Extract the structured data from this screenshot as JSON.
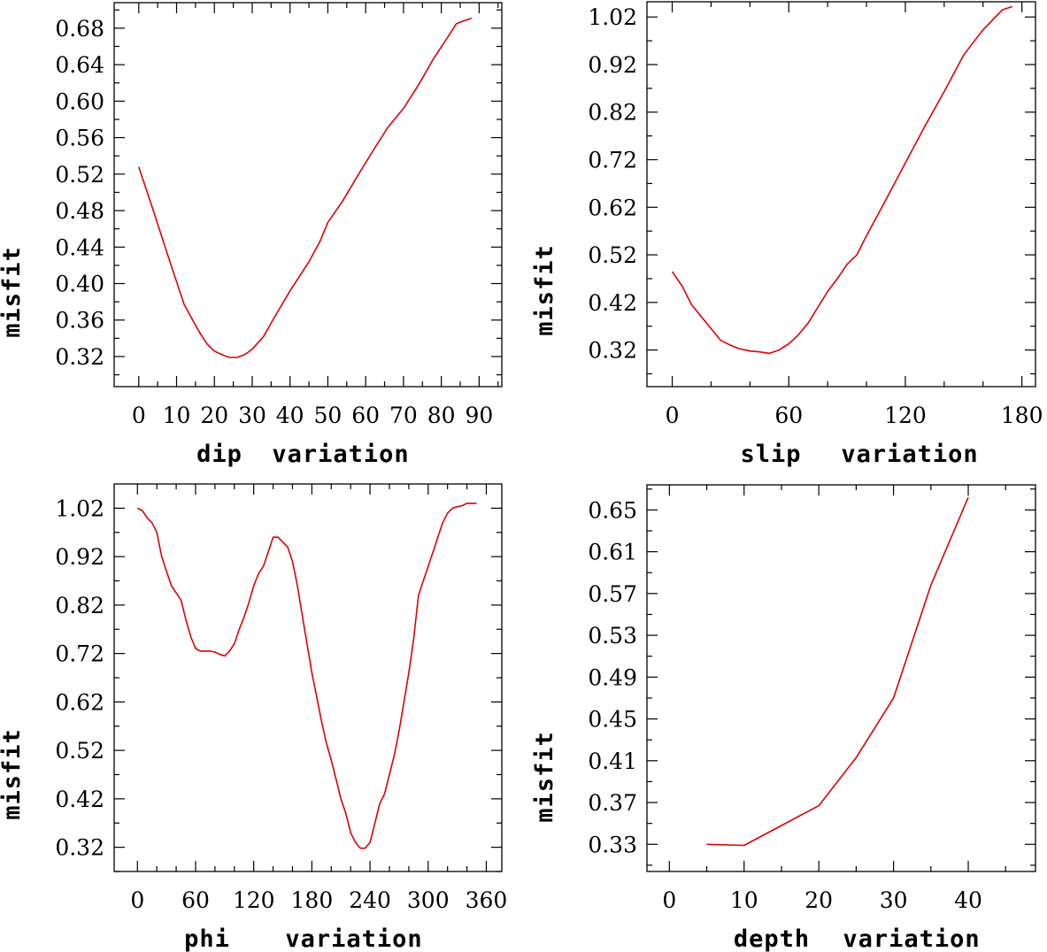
{
  "chart_data": [
    {
      "type": "line",
      "xlabel_parts": [
        "dip",
        "variation"
      ],
      "ylabel": "misfit",
      "xlim": [
        -6.5,
        96
      ],
      "ylim": [
        0.287,
        0.708
      ],
      "xticks": [
        0,
        10,
        20,
        30,
        40,
        50,
        60,
        70,
        80,
        90
      ],
      "xticks_minor": [
        5,
        15,
        25,
        35,
        45,
        55,
        65,
        75,
        85,
        95
      ],
      "yticks": [
        0.32,
        0.36,
        0.4,
        0.44,
        0.48,
        0.52,
        0.56,
        0.6,
        0.64,
        0.68
      ],
      "yticks_minor": [
        0.3,
        0.34,
        0.38,
        0.42,
        0.46,
        0.5,
        0.54,
        0.58,
        0.62,
        0.66,
        0.7
      ],
      "ytick_labels": [
        "0.32",
        "0.36",
        "0.40",
        "0.44",
        "0.48",
        "0.52",
        "0.56",
        "0.60",
        "0.64",
        "0.68"
      ],
      "color": "#e00000",
      "x": [
        0,
        4,
        8,
        12,
        16,
        18,
        20,
        22,
        24,
        26,
        28,
        30,
        33,
        36,
        40,
        45,
        48,
        50,
        54,
        58,
        62,
        66,
        70,
        74,
        78,
        82,
        84,
        88
      ],
      "y": [
        0.528,
        0.478,
        0.427,
        0.377,
        0.347,
        0.334,
        0.326,
        0.322,
        0.319,
        0.319,
        0.322,
        0.328,
        0.342,
        0.364,
        0.392,
        0.424,
        0.447,
        0.467,
        0.491,
        0.519,
        0.546,
        0.572,
        0.592,
        0.618,
        0.647,
        0.672,
        0.685,
        0.691
      ]
    },
    {
      "type": "line",
      "xlabel_parts": [
        "slip",
        "variation"
      ],
      "ylabel": "misfit",
      "xlim": [
        -13,
        187
      ],
      "ylim": [
        0.243,
        1.052
      ],
      "xticks": [
        0,
        60,
        120,
        180
      ],
      "xticks_minor": [
        20,
        40,
        80,
        100,
        140,
        160
      ],
      "yticks": [
        0.32,
        0.42,
        0.52,
        0.62,
        0.72,
        0.82,
        0.92,
        1.02
      ],
      "yticks_minor": [
        0.27,
        0.37,
        0.47,
        0.57,
        0.67,
        0.77,
        0.87,
        0.97
      ],
      "ytick_labels": [
        "0.32",
        "0.42",
        "0.52",
        "0.62",
        "0.72",
        "0.82",
        "0.92",
        "1.02"
      ],
      "color": "#e00000",
      "x": [
        0,
        5,
        10,
        15,
        20,
        25,
        30,
        35,
        40,
        45,
        50,
        55,
        60,
        65,
        70,
        75,
        80,
        85,
        90,
        95,
        100,
        110,
        120,
        130,
        140,
        150,
        160,
        170,
        175
      ],
      "y": [
        0.485,
        0.455,
        0.415,
        0.39,
        0.365,
        0.34,
        0.33,
        0.322,
        0.318,
        0.316,
        0.313,
        0.32,
        0.333,
        0.352,
        0.377,
        0.41,
        0.443,
        0.47,
        0.5,
        0.52,
        0.56,
        0.636,
        0.713,
        0.79,
        0.863,
        0.94,
        0.993,
        1.035,
        1.042
      ]
    },
    {
      "type": "line",
      "xlabel_parts": [
        "phi",
        "variation"
      ],
      "ylabel": "misfit",
      "xlim": [
        -24,
        376
      ],
      "ylim": [
        0.27,
        1.07
      ],
      "xticks": [
        0,
        60,
        120,
        180,
        240,
        300,
        360
      ],
      "xticks_minor": [
        20,
        40,
        80,
        100,
        140,
        160,
        200,
        220,
        260,
        280,
        320,
        340
      ],
      "yticks": [
        0.32,
        0.42,
        0.52,
        0.62,
        0.72,
        0.82,
        0.92,
        1.02
      ],
      "yticks_minor": [
        0.27,
        0.37,
        0.47,
        0.57,
        0.67,
        0.77,
        0.87,
        0.97
      ],
      "ytick_labels": [
        "0.32",
        "0.42",
        "0.52",
        "0.62",
        "0.72",
        "0.82",
        "0.92",
        "1.02"
      ],
      "color": "#e00000",
      "x": [
        0,
        5,
        10,
        15,
        20,
        25,
        30,
        35,
        40,
        45,
        50,
        55,
        60,
        65,
        70,
        75,
        80,
        85,
        90,
        95,
        100,
        105,
        110,
        115,
        120,
        125,
        130,
        135,
        140,
        145,
        150,
        155,
        160,
        165,
        170,
        175,
        180,
        185,
        190,
        195,
        200,
        205,
        210,
        215,
        220,
        225,
        230,
        235,
        240,
        245,
        250,
        255,
        260,
        265,
        270,
        275,
        280,
        285,
        290,
        295,
        300,
        305,
        310,
        315,
        320,
        325,
        330,
        335,
        340,
        345,
        350
      ],
      "y": [
        1.02,
        1.015,
        1.0,
        0.99,
        0.97,
        0.92,
        0.89,
        0.86,
        0.845,
        0.83,
        0.79,
        0.755,
        0.73,
        0.725,
        0.725,
        0.725,
        0.723,
        0.718,
        0.715,
        0.725,
        0.74,
        0.77,
        0.795,
        0.825,
        0.86,
        0.885,
        0.9,
        0.93,
        0.96,
        0.96,
        0.95,
        0.94,
        0.91,
        0.86,
        0.8,
        0.74,
        0.68,
        0.63,
        0.58,
        0.535,
        0.5,
        0.46,
        0.42,
        0.39,
        0.35,
        0.33,
        0.318,
        0.318,
        0.33,
        0.37,
        0.41,
        0.43,
        0.47,
        0.51,
        0.56,
        0.62,
        0.68,
        0.75,
        0.84,
        0.87,
        0.9,
        0.93,
        0.96,
        0.99,
        1.01,
        1.02,
        1.023,
        1.025,
        1.03,
        1.03,
        1.03
      ]
    },
    {
      "type": "line",
      "xlabel_parts": [
        "depth",
        "variation"
      ],
      "ylabel": "misfit",
      "xlim": [
        -3,
        49
      ],
      "ylim": [
        0.304,
        0.674
      ],
      "xticks": [
        0,
        10,
        20,
        30,
        40
      ],
      "xticks_minor": [
        5,
        15,
        25,
        35,
        45
      ],
      "yticks": [
        0.33,
        0.37,
        0.41,
        0.45,
        0.49,
        0.53,
        0.57,
        0.61,
        0.65
      ],
      "yticks_minor": [
        0.31,
        0.35,
        0.39,
        0.43,
        0.47,
        0.51,
        0.55,
        0.59,
        0.63,
        0.67
      ],
      "ytick_labels": [
        "0.33",
        "0.37",
        "0.41",
        "0.45",
        "0.49",
        "0.53",
        "0.57",
        "0.61",
        "0.65"
      ],
      "color": "#e00000",
      "x": [
        5,
        10,
        15,
        20,
        25,
        30,
        35,
        40
      ],
      "y": [
        0.33,
        0.329,
        0.348,
        0.367,
        0.413,
        0.47,
        0.578,
        0.662
      ]
    }
  ]
}
